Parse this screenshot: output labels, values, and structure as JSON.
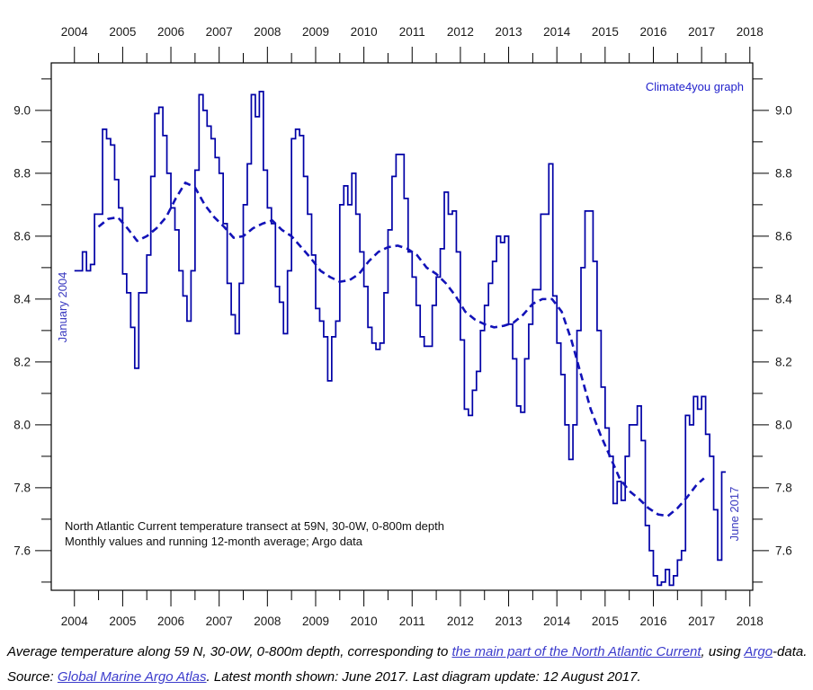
{
  "chart_data": {
    "type": "line",
    "title": "",
    "xlabel": "",
    "ylabel": "",
    "x_axis": {
      "tick_years": [
        2004,
        2005,
        2006,
        2007,
        2008,
        2009,
        2010,
        2011,
        2012,
        2013,
        2014,
        2015,
        2016,
        2017,
        2018
      ],
      "minor_tick_step_years": 0.5,
      "range": [
        2003.52,
        2018.06
      ]
    },
    "y_axis": {
      "major_ticks": [
        7.6,
        7.8,
        8.0,
        8.2,
        8.4,
        8.6,
        8.8,
        9.0
      ],
      "minor_ticks": [
        7.5,
        7.7,
        7.9,
        8.1,
        8.3,
        8.5,
        8.7,
        8.9,
        9.1
      ],
      "range": [
        7.474,
        9.151
      ],
      "label_decimals": 1
    },
    "grid": false,
    "legend_position": "none",
    "series": [
      {
        "name": "Monthly values",
        "style": "step",
        "start_year": 2004,
        "start_month": 1,
        "end_label_month": "June 2017",
        "values_by_year": {
          "2004": [
            8.49,
            8.49,
            8.55,
            8.49,
            8.51,
            8.67,
            8.67,
            8.94,
            8.91,
            8.89,
            8.78,
            8.69
          ],
          "2005": [
            8.48,
            8.42,
            8.31,
            8.18,
            8.42,
            8.42,
            8.54,
            8.79,
            8.99,
            9.01,
            8.92,
            8.8
          ],
          "2006": [
            8.69,
            8.62,
            8.49,
            8.41,
            8.33,
            8.49,
            8.81,
            9.05,
            9.0,
            8.95,
            8.91,
            8.85
          ],
          "2007": [
            8.8,
            8.64,
            8.45,
            8.35,
            8.29,
            8.45,
            8.7,
            8.83,
            9.05,
            8.98,
            9.06,
            8.81
          ],
          "2008": [
            8.69,
            8.64,
            8.44,
            8.39,
            8.29,
            8.49,
            8.91,
            8.94,
            8.92,
            8.79,
            8.67,
            8.54
          ],
          "2009": [
            8.37,
            8.33,
            8.28,
            8.14,
            8.28,
            8.33,
            8.7,
            8.76,
            8.7,
            8.8,
            8.67,
            8.55
          ],
          "2010": [
            8.44,
            8.31,
            8.26,
            8.24,
            8.26,
            8.42,
            8.62,
            8.79,
            8.86,
            8.86,
            8.72,
            8.55
          ],
          "2011": [
            8.47,
            8.38,
            8.28,
            8.25,
            8.25,
            8.38,
            8.47,
            8.56,
            8.74,
            8.67,
            8.68,
            8.55
          ],
          "2012": [
            8.27,
            8.05,
            8.03,
            8.11,
            8.17,
            8.3,
            8.38,
            8.45,
            8.52,
            8.6,
            8.58,
            8.6
          ],
          "2013": [
            8.32,
            8.21,
            8.06,
            8.04,
            8.21,
            8.32,
            8.43,
            8.43,
            8.67,
            8.67,
            8.83,
            8.41
          ],
          "2014": [
            8.26,
            8.16,
            8.0,
            7.89,
            8.0,
            8.3,
            8.5,
            8.68,
            8.68,
            8.52,
            8.3,
            8.12
          ],
          "2015": [
            7.99,
            7.9,
            7.75,
            7.82,
            7.76,
            7.9,
            8.0,
            8.0,
            8.06,
            7.95,
            7.68,
            7.6
          ],
          "2016": [
            7.52,
            7.49,
            7.5,
            7.54,
            7.49,
            7.52,
            7.57,
            7.6,
            8.03,
            8.0,
            8.09,
            8.05
          ],
          "2017": [
            8.09,
            7.97,
            7.9,
            7.73,
            7.57,
            7.85
          ]
        }
      },
      {
        "name": "Running 12-month average",
        "style": "dashed",
        "points": [
          [
            2004.5,
            8.63
          ],
          [
            2004.7,
            8.655
          ],
          [
            2004.9,
            8.66
          ],
          [
            2005.1,
            8.625
          ],
          [
            2005.3,
            8.585
          ],
          [
            2005.5,
            8.6
          ],
          [
            2005.7,
            8.625
          ],
          [
            2005.9,
            8.66
          ],
          [
            2006.1,
            8.72
          ],
          [
            2006.3,
            8.77
          ],
          [
            2006.5,
            8.755
          ],
          [
            2006.7,
            8.7
          ],
          [
            2006.9,
            8.66
          ],
          [
            2007.1,
            8.63
          ],
          [
            2007.3,
            8.595
          ],
          [
            2007.5,
            8.6
          ],
          [
            2007.7,
            8.625
          ],
          [
            2007.9,
            8.64
          ],
          [
            2008.1,
            8.65
          ],
          [
            2008.3,
            8.62
          ],
          [
            2008.5,
            8.6
          ],
          [
            2008.7,
            8.565
          ],
          [
            2008.9,
            8.53
          ],
          [
            2009.1,
            8.49
          ],
          [
            2009.3,
            8.47
          ],
          [
            2009.5,
            8.455
          ],
          [
            2009.7,
            8.46
          ],
          [
            2009.9,
            8.48
          ],
          [
            2010.1,
            8.52
          ],
          [
            2010.3,
            8.55
          ],
          [
            2010.5,
            8.565
          ],
          [
            2010.7,
            8.57
          ],
          [
            2010.9,
            8.56
          ],
          [
            2011.1,
            8.54
          ],
          [
            2011.3,
            8.5
          ],
          [
            2011.5,
            8.48
          ],
          [
            2011.7,
            8.45
          ],
          [
            2011.9,
            8.41
          ],
          [
            2012.1,
            8.36
          ],
          [
            2012.3,
            8.335
          ],
          [
            2012.5,
            8.32
          ],
          [
            2012.7,
            8.31
          ],
          [
            2012.9,
            8.315
          ],
          [
            2013.1,
            8.325
          ],
          [
            2013.3,
            8.35
          ],
          [
            2013.5,
            8.385
          ],
          [
            2013.7,
            8.4
          ],
          [
            2013.9,
            8.4
          ],
          [
            2014.1,
            8.36
          ],
          [
            2014.3,
            8.27
          ],
          [
            2014.5,
            8.16
          ],
          [
            2014.7,
            8.05
          ],
          [
            2014.9,
            7.97
          ],
          [
            2015.1,
            7.9
          ],
          [
            2015.3,
            7.83
          ],
          [
            2015.5,
            7.79
          ],
          [
            2015.7,
            7.765
          ],
          [
            2015.9,
            7.735
          ],
          [
            2016.1,
            7.715
          ],
          [
            2016.3,
            7.71
          ],
          [
            2016.5,
            7.735
          ],
          [
            2016.7,
            7.77
          ],
          [
            2016.9,
            7.81
          ],
          [
            2017.05,
            7.83
          ]
        ]
      }
    ],
    "labels": {
      "watermark": "Climate4you graph",
      "start_label": "January 2004",
      "end_label": "June 2017",
      "annotation_line1": "North Atlantic Current temperature transect at 59N, 30-0W, 0-800m depth",
      "annotation_line2": "Monthly values and running 12-month average; Argo data"
    }
  },
  "colors": {
    "monthly_line": "#0000a6",
    "average_line": "#1212b8",
    "watermark": "#2222cc",
    "date_labels": "#3a3ac0",
    "axis": "#000000",
    "link": "#3c3ccc"
  },
  "footer": {
    "line1_segments": [
      {
        "text": "Average temperature along 59 N, 30-0W, 0-800m depth, corresponding to ",
        "link": false
      },
      {
        "text": "the main part of the North Atlantic Current",
        "link": true
      },
      {
        "text": ", using ",
        "link": false
      },
      {
        "text": "Argo",
        "link": true
      },
      {
        "text": "-data.",
        "link": false
      }
    ],
    "line2_segments": [
      {
        "text": "Source: ",
        "link": false
      },
      {
        "text": "Global Marine Argo Atlas",
        "link": true
      },
      {
        "text": ". Latest month shown: June 2017. Last diagram update: 12 August 2017.",
        "link": false
      }
    ]
  }
}
